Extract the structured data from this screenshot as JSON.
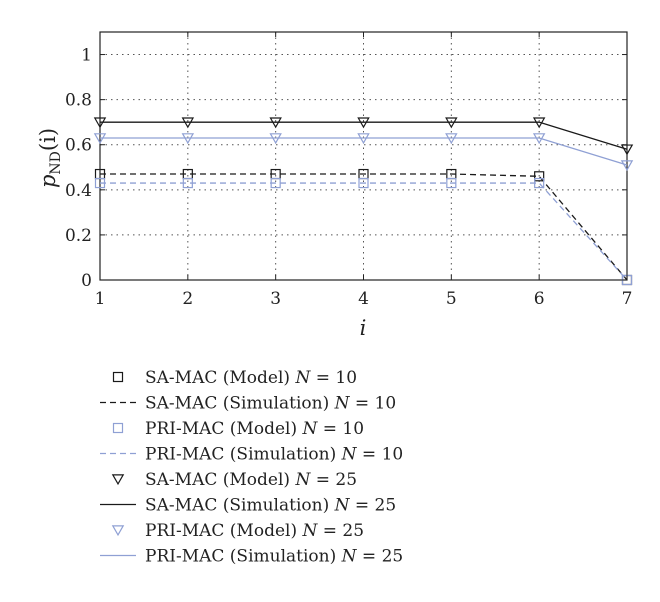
{
  "chart_data": {
    "type": "line",
    "xlabel": "i",
    "ylabel": "p",
    "ylabel_sub": "ND",
    "ylabel_arg": "(i)",
    "x": [
      1,
      2,
      3,
      4,
      5,
      6,
      7
    ],
    "xlim": [
      1,
      7
    ],
    "ylim": [
      0,
      1.1
    ],
    "xticks": [
      "1",
      "2",
      "3",
      "4",
      "5",
      "6",
      "7"
    ],
    "yticks": [
      "0",
      "0.2",
      "0.4",
      "0.6",
      "0.8",
      "1"
    ],
    "grid": true,
    "legend_position": "below",
    "series": [
      {
        "name": "SA-MAC (Model)",
        "n_label": "N = 10",
        "style": "marker",
        "marker": "square",
        "color": "#1a1a1a",
        "values": [
          0.47,
          0.47,
          0.47,
          0.47,
          0.47,
          0.46,
          0.0
        ]
      },
      {
        "name": "SA-MAC (Simulation)",
        "n_label": "N = 10",
        "style": "dashed",
        "color": "#1a1a1a",
        "values": [
          0.47,
          0.47,
          0.47,
          0.47,
          0.47,
          0.46,
          0.0
        ]
      },
      {
        "name": "PRI-MAC (Model)",
        "n_label": "N = 10",
        "style": "marker",
        "marker": "square",
        "color": "#8fa0d4",
        "values": [
          0.43,
          0.43,
          0.43,
          0.43,
          0.43,
          0.43,
          0.0
        ]
      },
      {
        "name": "PRI-MAC (Simulation)",
        "n_label": "N = 10",
        "style": "dashed",
        "color": "#8fa0d4",
        "values": [
          0.43,
          0.43,
          0.43,
          0.43,
          0.43,
          0.43,
          0.0
        ]
      },
      {
        "name": "SA-MAC (Model)",
        "n_label": "N = 25",
        "style": "marker",
        "marker": "triangle-down",
        "color": "#1a1a1a",
        "values": [
          0.7,
          0.7,
          0.7,
          0.7,
          0.7,
          0.7,
          0.58
        ]
      },
      {
        "name": "SA-MAC (Simulation)",
        "n_label": "N = 25",
        "style": "solid",
        "color": "#1a1a1a",
        "values": [
          0.7,
          0.7,
          0.7,
          0.7,
          0.7,
          0.7,
          0.58
        ]
      },
      {
        "name": "PRI-MAC (Model)",
        "n_label": "N = 25",
        "style": "marker",
        "marker": "triangle-down",
        "color": "#8fa0d4",
        "values": [
          0.63,
          0.63,
          0.63,
          0.63,
          0.63,
          0.63,
          0.51
        ]
      },
      {
        "name": "PRI-MAC (Simulation)",
        "n_label": "N = 25",
        "style": "solid",
        "color": "#8fa0d4",
        "values": [
          0.63,
          0.63,
          0.63,
          0.63,
          0.63,
          0.63,
          0.51
        ]
      }
    ]
  }
}
